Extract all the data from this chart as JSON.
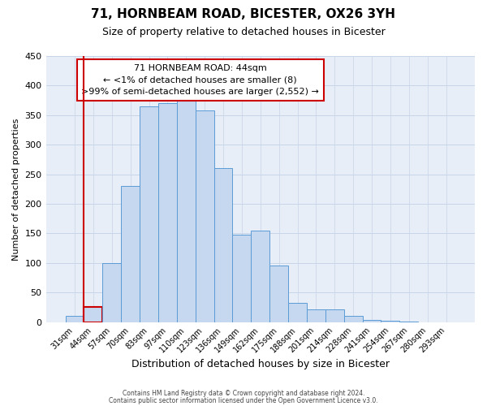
{
  "title": "71, HORNBEAM ROAD, BICESTER, OX26 3YH",
  "subtitle": "Size of property relative to detached houses in Bicester",
  "xlabel": "Distribution of detached houses by size in Bicester",
  "ylabel": "Number of detached properties",
  "bar_labels": [
    "31sqm",
    "44sqm",
    "57sqm",
    "70sqm",
    "83sqm",
    "97sqm",
    "110sqm",
    "123sqm",
    "136sqm",
    "149sqm",
    "162sqm",
    "175sqm",
    "188sqm",
    "201sqm",
    "214sqm",
    "228sqm",
    "241sqm",
    "254sqm",
    "267sqm",
    "280sqm",
    "293sqm"
  ],
  "bar_values": [
    10,
    25,
    100,
    230,
    365,
    370,
    375,
    358,
    260,
    148,
    155,
    95,
    33,
    21,
    22,
    11,
    4,
    2,
    1,
    0,
    0
  ],
  "bar_color": "#c5d8f0",
  "bar_edge_color": "#5b9bd5",
  "highlight_bar_index": 1,
  "highlight_color": "#cc0000",
  "ylim": [
    0,
    450
  ],
  "yticks": [
    0,
    50,
    100,
    150,
    200,
    250,
    300,
    350,
    400,
    450
  ],
  "annotation_title": "71 HORNBEAM ROAD: 44sqm",
  "annotation_line1": "← <1% of detached houses are smaller (8)",
  "annotation_line2": ">99% of semi-detached houses are larger (2,552) →",
  "annotation_box_color": "#ffffff",
  "annotation_box_edge": "#cc0000",
  "footer_line1": "Contains HM Land Registry data © Crown copyright and database right 2024.",
  "footer_line2": "Contains public sector information licensed under the Open Government Licence v3.0.",
  "grid_color": "#c8d4e8",
  "background_color": "#e8eef8"
}
